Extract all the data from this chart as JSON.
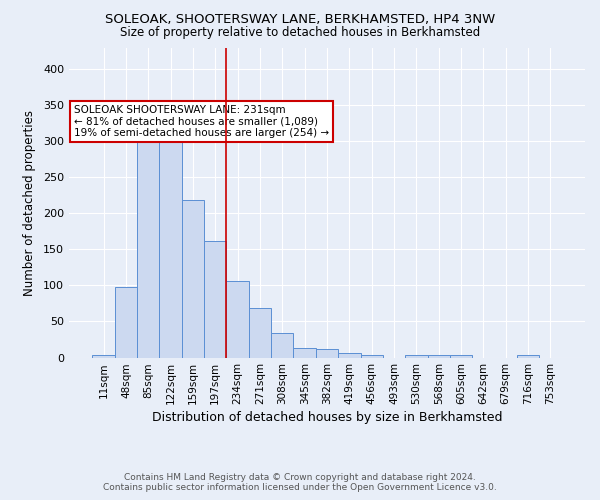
{
  "title1": "SOLEOAK, SHOOTERSWAY LANE, BERKHAMSTED, HP4 3NW",
  "title2": "Size of property relative to detached houses in Berkhamsted",
  "xlabel": "Distribution of detached houses by size in Berkhamsted",
  "ylabel": "Number of detached properties",
  "bar_labels": [
    "11sqm",
    "48sqm",
    "85sqm",
    "122sqm",
    "159sqm",
    "197sqm",
    "234sqm",
    "271sqm",
    "308sqm",
    "345sqm",
    "382sqm",
    "419sqm",
    "456sqm",
    "493sqm",
    "530sqm",
    "568sqm",
    "605sqm",
    "642sqm",
    "679sqm",
    "716sqm",
    "753sqm"
  ],
  "bar_values": [
    3,
    98,
    300,
    330,
    219,
    162,
    106,
    68,
    34,
    13,
    12,
    6,
    3,
    0,
    3,
    4,
    3,
    0,
    0,
    3,
    0
  ],
  "bar_color": "#ccd9f0",
  "bar_edge_color": "#5b8fd4",
  "vline_x_idx": 6,
  "vline_color": "#cc0000",
  "annotation_text": "SOLEOAK SHOOTERSWAY LANE: 231sqm\n← 81% of detached houses are smaller (1,089)\n19% of semi-detached houses are larger (254) →",
  "annotation_box_color": "#ffffff",
  "annotation_box_edge": "#cc0000",
  "ylim": [
    0,
    430
  ],
  "yticks": [
    0,
    50,
    100,
    150,
    200,
    250,
    300,
    350,
    400
  ],
  "footer1": "Contains HM Land Registry data © Crown copyright and database right 2024.",
  "footer2": "Contains public sector information licensed under the Open Government Licence v3.0.",
  "bg_color": "#e8eef8",
  "plot_bg_color": "#e8eef8",
  "title1_fontsize": 9.5,
  "title2_fontsize": 8.5,
  "xlabel_fontsize": 9,
  "ylabel_fontsize": 8.5,
  "tick_fontsize": 7.5,
  "ytick_fontsize": 8,
  "footer_fontsize": 6.5,
  "annotation_fontsize": 7.5
}
